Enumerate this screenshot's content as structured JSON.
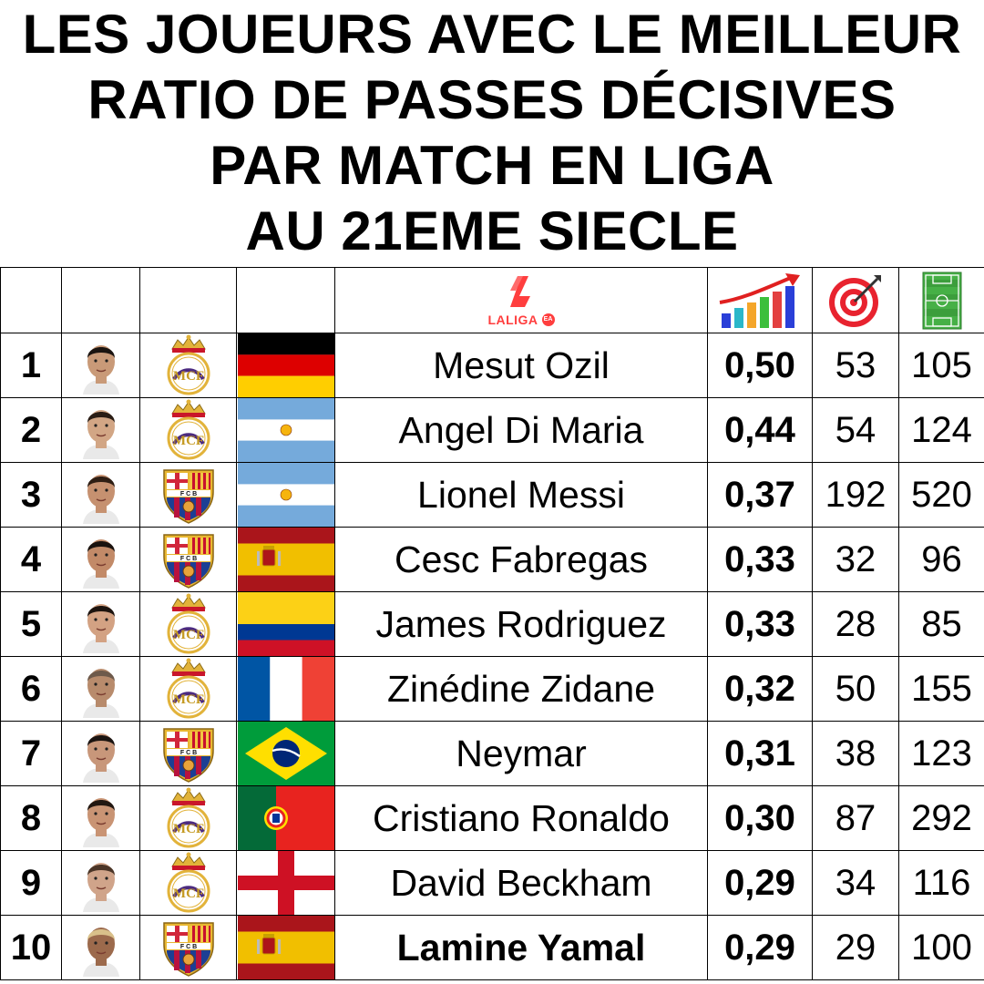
{
  "title": {
    "lines": [
      "LES JOUEURS AVEC LE MEILLEUR",
      "RATIO DE PASSES DÉCISIVES",
      "PAR MATCH EN LIGA",
      "AU 21EME SIECLE"
    ]
  },
  "header": {
    "league_logo_text": "LALIGA",
    "league_logo_icon": "laliga-logo",
    "ratio_icon": "bar-chart-up-icon",
    "assists_icon": "target-arrow-icon",
    "matches_icon": "football-pitch-icon"
  },
  "colors": {
    "laliga_red": "#ff3e3e",
    "real_madrid_gold": "#e2b33a",
    "barca_blue": "#1c3f94",
    "barca_red": "#b8123e"
  },
  "rows": [
    {
      "rank": "1",
      "name": "Mesut Ozil",
      "club": "real-madrid",
      "flag": "germany",
      "ratio": "0,50",
      "assists": "53",
      "matches": "105",
      "bold": false,
      "skin": "#c99a78",
      "hair": "#1b1410"
    },
    {
      "rank": "2",
      "name": "Angel Di Maria",
      "club": "real-madrid",
      "flag": "argentina",
      "ratio": "0,44",
      "assists": "54",
      "matches": "124",
      "bold": false,
      "skin": "#d2a685",
      "hair": "#2a1d15"
    },
    {
      "rank": "3",
      "name": "Lionel Messi",
      "club": "barcelona",
      "flag": "argentina",
      "ratio": "0,37",
      "assists": "192",
      "matches": "520",
      "bold": false,
      "skin": "#c69170",
      "hair": "#2e1e14"
    },
    {
      "rank": "4",
      "name": "Cesc Fabregas",
      "club": "barcelona",
      "flag": "spain",
      "ratio": "0,33",
      "assists": "32",
      "matches": "96",
      "bold": false,
      "skin": "#c28a68",
      "hair": "#1a120e"
    },
    {
      "rank": "5",
      "name": "James Rodriguez",
      "club": "real-madrid",
      "flag": "colombia",
      "ratio": "0,33",
      "assists": "28",
      "matches": "85",
      "bold": false,
      "skin": "#d3a283",
      "hair": "#1d140f"
    },
    {
      "rank": "6",
      "name": "Zinédine Zidane",
      "club": "real-madrid",
      "flag": "france",
      "ratio": "0,32",
      "assists": "50",
      "matches": "155",
      "bold": false,
      "skin": "#b88b6c",
      "hair": "#6e5a4b"
    },
    {
      "rank": "7",
      "name": "Neymar",
      "club": "barcelona",
      "flag": "brazil",
      "ratio": "0,31",
      "assists": "38",
      "matches": "123",
      "bold": false,
      "skin": "#c8977a",
      "hair": "#1b1411"
    },
    {
      "rank": "8",
      "name": "Cristiano Ronaldo",
      "club": "real-madrid",
      "flag": "portugal",
      "ratio": "0,30",
      "assists": "87",
      "matches": "292",
      "bold": false,
      "skin": "#c99474",
      "hair": "#221711"
    },
    {
      "rank": "9",
      "name": "David Beckham",
      "club": "real-madrid",
      "flag": "england",
      "ratio": "0,29",
      "assists": "34",
      "matches": "116",
      "bold": false,
      "skin": "#d0a48a",
      "hair": "#4b3527"
    },
    {
      "rank": "10",
      "name": "Lamine Yamal",
      "club": "barcelona",
      "flag": "spain",
      "ratio": "0,29",
      "assists": "29",
      "matches": "100",
      "bold": true,
      "skin": "#9c6a4c",
      "hair": "#d9c08a"
    }
  ]
}
